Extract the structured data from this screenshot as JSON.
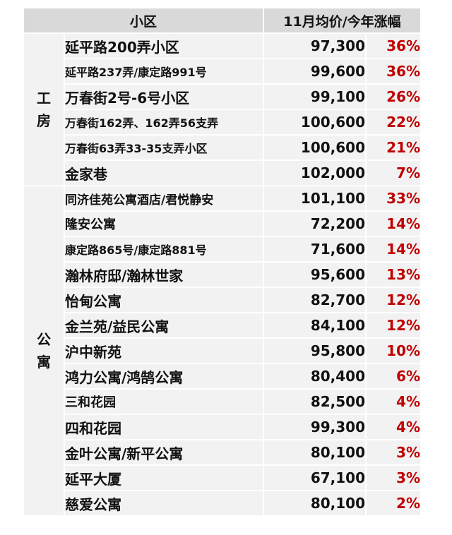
{
  "header": {
    "name_label": "小区",
    "value_label": "11月均价/今年涨幅"
  },
  "groups": [
    {
      "category": "工房",
      "rows": [
        {
          "name": "延平路200弄小区",
          "price": "97,300",
          "change": "36%"
        },
        {
          "name": "延平路237弄/康定路991号",
          "price": "99,600",
          "change": "36%"
        },
        {
          "name": "万春街2号-6号小区",
          "price": "99,100",
          "change": "26%"
        },
        {
          "name": "万春街162弄、162弄56支弄",
          "price": "100,600",
          "change": "22%"
        },
        {
          "name": "万春街63弄33-35支弄小区",
          "price": "100,600",
          "change": "21%"
        },
        {
          "name": "金家巷",
          "price": "102,000",
          "change": "7%"
        }
      ]
    },
    {
      "category": "公寓",
      "rows": [
        {
          "name": "同济佳苑公寓酒店/君悦静安",
          "price": "101,100",
          "change": "33%"
        },
        {
          "name": "隆安公寓",
          "price": "72,200",
          "change": "14%"
        },
        {
          "name": "康定路865号/康定路881号",
          "price": "71,600",
          "change": "14%"
        },
        {
          "name": "瀚林府邸/瀚林世家",
          "price": "95,600",
          "change": "13%"
        },
        {
          "name": "怡甸公寓",
          "price": "82,700",
          "change": "12%"
        },
        {
          "name": "金兰苑/益民公寓",
          "price": "84,100",
          "change": "12%"
        },
        {
          "name": "沪中新苑",
          "price": "95,800",
          "change": "10%"
        },
        {
          "name": "鸿力公寓/鸿鹄公寓",
          "price": "80,400",
          "change": "6%"
        },
        {
          "name": "三和花园",
          "price": "82,500",
          "change": "4%"
        },
        {
          "name": "四和花园",
          "price": "99,300",
          "change": "4%"
        },
        {
          "name": "金叶公寓/新平公寓",
          "price": "80,100",
          "change": "3%"
        },
        {
          "name": "延平大厦",
          "price": "67,100",
          "change": "3%"
        },
        {
          "name": "慈爱公寓",
          "price": "80,100",
          "change": "2%"
        }
      ]
    }
  ]
}
